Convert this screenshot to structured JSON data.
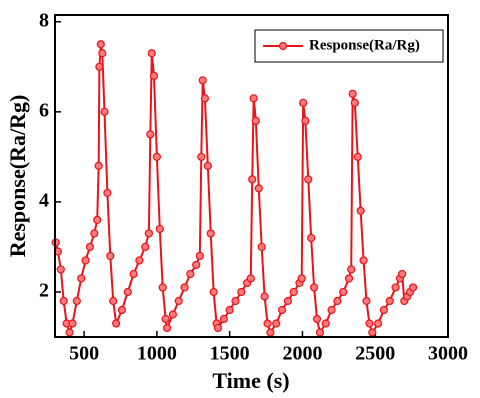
{
  "chart_data": {
    "type": "line",
    "xlabel": "Time (s)",
    "ylabel": "Response(Ra/Rg)",
    "xlim": [
      300,
      3000
    ],
    "ylim": [
      1,
      8.15
    ],
    "xticks": [
      500,
      1000,
      1500,
      2000,
      2500,
      3000
    ],
    "yticks": [
      2,
      4,
      6,
      8
    ],
    "legend": "upper right",
    "x": [
      305,
      320,
      340,
      360,
      380,
      400,
      420,
      450,
      480,
      510,
      540,
      570,
      590,
      600,
      605,
      615,
      625,
      640,
      660,
      680,
      700,
      720,
      760,
      800,
      840,
      880,
      920,
      945,
      955,
      965,
      980,
      1000,
      1020,
      1040,
      1060,
      1070,
      1110,
      1150,
      1190,
      1230,
      1270,
      1295,
      1305,
      1315,
      1330,
      1350,
      1370,
      1390,
      1410,
      1420,
      1460,
      1500,
      1540,
      1580,
      1620,
      1645,
      1655,
      1665,
      1680,
      1700,
      1720,
      1740,
      1760,
      1780,
      1820,
      1860,
      1900,
      1940,
      1980,
      1995,
      2005,
      2020,
      2040,
      2060,
      2080,
      2100,
      2120,
      2160,
      2200,
      2240,
      2280,
      2320,
      2335,
      2345,
      2360,
      2380,
      2400,
      2420,
      2440,
      2460,
      2480,
      2520,
      2560,
      2600,
      2640,
      2670,
      2685,
      2700,
      2720,
      2740,
      2760
    ],
    "series": [
      {
        "name": "Response(Ra/Rg)",
        "color": "#e8141a",
        "values": [
          3.1,
          2.9,
          2.5,
          1.8,
          1.3,
          1.1,
          1.3,
          1.8,
          2.3,
          2.7,
          3.0,
          3.3,
          3.6,
          4.8,
          7.0,
          7.5,
          7.3,
          6.0,
          4.2,
          2.8,
          1.8,
          1.3,
          1.6,
          2.0,
          2.4,
          2.7,
          3.0,
          3.3,
          5.5,
          7.3,
          6.8,
          5.0,
          3.4,
          2.1,
          1.4,
          1.2,
          1.5,
          1.8,
          2.1,
          2.4,
          2.6,
          2.8,
          5.0,
          6.7,
          6.3,
          4.8,
          3.3,
          2.0,
          1.3,
          1.2,
          1.4,
          1.6,
          1.8,
          2.0,
          2.2,
          2.3,
          4.5,
          6.3,
          5.8,
          4.3,
          3.0,
          1.9,
          1.3,
          1.1,
          1.3,
          1.6,
          1.8,
          2.0,
          2.2,
          2.3,
          6.2,
          5.8,
          4.5,
          3.2,
          2.1,
          1.4,
          1.1,
          1.3,
          1.6,
          1.8,
          2.0,
          2.3,
          2.5,
          6.4,
          6.2,
          5.0,
          3.8,
          2.7,
          1.8,
          1.3,
          1.1,
          1.3,
          1.6,
          1.8,
          2.1,
          2.3,
          2.4,
          1.8,
          1.9,
          2.0,
          2.1
        ]
      }
    ]
  }
}
